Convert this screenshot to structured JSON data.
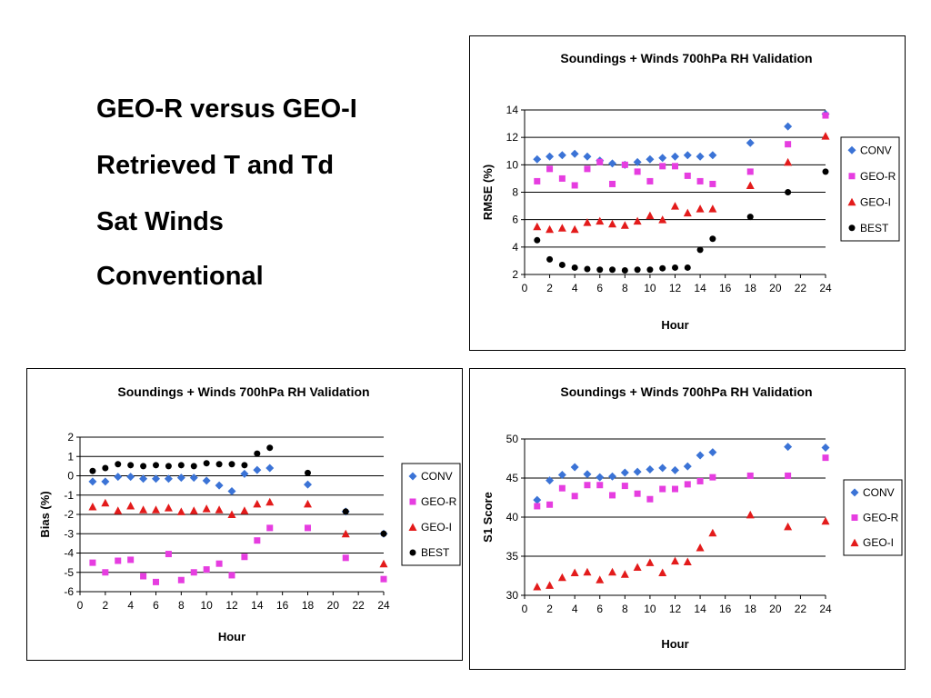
{
  "headings": [
    "GEO-R versus GEO-I",
    "Retrieved T and Td",
    "Sat Winds",
    "Conventional"
  ],
  "colors": {
    "CONV": "#3b73d6",
    "GEO-R": "#e63de0",
    "GEO-I": "#e31b1b",
    "BEST": "#000000"
  },
  "markers": {
    "CONV": "diamond",
    "GEO-R": "square",
    "GEO-I": "triangle",
    "BEST": "circle"
  },
  "chart_data": [
    {
      "id": "rmse",
      "type": "scatter",
      "title": "Soundings + Winds 700hPa RH Validation",
      "xlabel": "Hour",
      "ylabel": "RMSE (%)",
      "xlim": [
        0,
        24
      ],
      "ylim": [
        2,
        14
      ],
      "xticks": [
        0,
        2,
        4,
        6,
        8,
        10,
        12,
        14,
        16,
        18,
        20,
        22,
        24
      ],
      "yticks": [
        2,
        4,
        6,
        8,
        10,
        12,
        14
      ],
      "grid": "horizontal",
      "legend": "right",
      "series": [
        {
          "name": "CONV",
          "points": [
            [
              1,
              10.4
            ],
            [
              2,
              10.6
            ],
            [
              3,
              10.7
            ],
            [
              4,
              10.8
            ],
            [
              5,
              10.6
            ],
            [
              6,
              10.3
            ],
            [
              7,
              10.1
            ],
            [
              8,
              10.0
            ],
            [
              9,
              10.2
            ],
            [
              10,
              10.4
            ],
            [
              11,
              10.5
            ],
            [
              12,
              10.6
            ],
            [
              13,
              10.7
            ],
            [
              14,
              10.6
            ],
            [
              15,
              10.7
            ],
            [
              18,
              11.6
            ],
            [
              21,
              12.8
            ],
            [
              24,
              13.7
            ]
          ]
        },
        {
          "name": "GEO-R",
          "points": [
            [
              1,
              8.8
            ],
            [
              2,
              9.7
            ],
            [
              3,
              9.0
            ],
            [
              4,
              8.5
            ],
            [
              5,
              9.7
            ],
            [
              6,
              10.2
            ],
            [
              7,
              8.6
            ],
            [
              8,
              10.0
            ],
            [
              9,
              9.5
            ],
            [
              10,
              8.8
            ],
            [
              11,
              9.9
            ],
            [
              12,
              9.9
            ],
            [
              13,
              9.2
            ],
            [
              14,
              8.8
            ],
            [
              15,
              8.6
            ],
            [
              18,
              9.5
            ],
            [
              21,
              11.5
            ],
            [
              24,
              13.6
            ]
          ]
        },
        {
          "name": "GEO-I",
          "points": [
            [
              1,
              5.5
            ],
            [
              2,
              5.3
            ],
            [
              3,
              5.4
            ],
            [
              4,
              5.3
            ],
            [
              5,
              5.8
            ],
            [
              6,
              5.9
            ],
            [
              7,
              5.7
            ],
            [
              8,
              5.6
            ],
            [
              9,
              5.9
            ],
            [
              10,
              6.3
            ],
            [
              11,
              6.0
            ],
            [
              12,
              7.0
            ],
            [
              13,
              6.5
            ],
            [
              14,
              6.8
            ],
            [
              15,
              6.8
            ],
            [
              18,
              8.5
            ],
            [
              21,
              10.2
            ],
            [
              24,
              12.1
            ]
          ]
        },
        {
          "name": "BEST",
          "points": [
            [
              1,
              4.5
            ],
            [
              2,
              3.1
            ],
            [
              3,
              2.7
            ],
            [
              4,
              2.5
            ],
            [
              5,
              2.4
            ],
            [
              6,
              2.35
            ],
            [
              7,
              2.35
            ],
            [
              8,
              2.3
            ],
            [
              9,
              2.35
            ],
            [
              10,
              2.35
            ],
            [
              11,
              2.45
            ],
            [
              12,
              2.5
            ],
            [
              13,
              2.5
            ],
            [
              14,
              3.8
            ],
            [
              15,
              4.6
            ],
            [
              18,
              6.2
            ],
            [
              21,
              8.0
            ],
            [
              24,
              9.5
            ]
          ]
        }
      ]
    },
    {
      "id": "bias",
      "type": "scatter",
      "title": "Soundings + Winds 700hPa RH Validation",
      "xlabel": "Hour",
      "ylabel": "Bias (%)",
      "xlim": [
        0,
        24
      ],
      "ylim": [
        -6,
        2
      ],
      "xticks": [
        0,
        2,
        4,
        6,
        8,
        10,
        12,
        14,
        16,
        18,
        20,
        22,
        24
      ],
      "yticks": [
        -6,
        -5,
        -4,
        -3,
        -2,
        -1,
        0,
        1,
        2
      ],
      "grid": "horizontal",
      "legend": "right",
      "series": [
        {
          "name": "CONV",
          "points": [
            [
              1,
              -0.3
            ],
            [
              2,
              -0.3
            ],
            [
              3,
              -0.05
            ],
            [
              4,
              -0.05
            ],
            [
              5,
              -0.15
            ],
            [
              6,
              -0.15
            ],
            [
              7,
              -0.15
            ],
            [
              8,
              -0.1
            ],
            [
              9,
              -0.1
            ],
            [
              10,
              -0.25
            ],
            [
              11,
              -0.5
            ],
            [
              12,
              -0.8
            ],
            [
              13,
              0.1
            ],
            [
              14,
              0.3
            ],
            [
              15,
              0.4
            ],
            [
              18,
              -0.45
            ],
            [
              21,
              -1.85
            ],
            [
              24,
              -3.0
            ]
          ]
        },
        {
          "name": "GEO-R",
          "points": [
            [
              1,
              -4.5
            ],
            [
              2,
              -5.0
            ],
            [
              3,
              -4.4
            ],
            [
              4,
              -4.35
            ],
            [
              5,
              -5.2
            ],
            [
              6,
              -5.5
            ],
            [
              7,
              -4.05
            ],
            [
              8,
              -5.4
            ],
            [
              9,
              -5.0
            ],
            [
              10,
              -4.85
            ],
            [
              11,
              -4.55
            ],
            [
              12,
              -5.15
            ],
            [
              13,
              -4.2
            ],
            [
              14,
              -3.35
            ],
            [
              15,
              -2.7
            ],
            [
              18,
              -2.7
            ],
            [
              21,
              -4.25
            ],
            [
              24,
              -5.35
            ]
          ]
        },
        {
          "name": "GEO-I",
          "points": [
            [
              1,
              -1.6
            ],
            [
              2,
              -1.4
            ],
            [
              3,
              -1.8
            ],
            [
              4,
              -1.55
            ],
            [
              5,
              -1.75
            ],
            [
              6,
              -1.75
            ],
            [
              7,
              -1.65
            ],
            [
              8,
              -1.85
            ],
            [
              9,
              -1.8
            ],
            [
              10,
              -1.7
            ],
            [
              11,
              -1.75
            ],
            [
              12,
              -2.0
            ],
            [
              13,
              -1.8
            ],
            [
              14,
              -1.45
            ],
            [
              15,
              -1.35
            ],
            [
              18,
              -1.45
            ],
            [
              21,
              -3.0
            ],
            [
              24,
              -4.55
            ]
          ]
        },
        {
          "name": "BEST",
          "points": [
            [
              1,
              0.25
            ],
            [
              2,
              0.4
            ],
            [
              3,
              0.6
            ],
            [
              4,
              0.55
            ],
            [
              5,
              0.5
            ],
            [
              6,
              0.55
            ],
            [
              7,
              0.5
            ],
            [
              8,
              0.55
            ],
            [
              9,
              0.5
            ],
            [
              10,
              0.65
            ],
            [
              11,
              0.6
            ],
            [
              12,
              0.6
            ],
            [
              13,
              0.55
            ],
            [
              14,
              1.15
            ],
            [
              15,
              1.45
            ],
            [
              18,
              0.15
            ],
            [
              21,
              -1.85
            ],
            [
              24,
              -3.0
            ]
          ]
        }
      ]
    },
    {
      "id": "s1",
      "type": "scatter",
      "title": "Soundings + Winds 700hPa RH Validation",
      "xlabel": "Hour",
      "ylabel": "S1 Score",
      "xlim": [
        0,
        24
      ],
      "ylim": [
        30,
        50
      ],
      "xticks": [
        0,
        2,
        4,
        6,
        8,
        10,
        12,
        14,
        16,
        18,
        20,
        22,
        24
      ],
      "yticks": [
        30,
        35,
        40,
        45,
        50
      ],
      "grid": "horizontal",
      "legend": "right",
      "series": [
        {
          "name": "CONV",
          "points": [
            [
              1,
              42.2
            ],
            [
              2,
              44.7
            ],
            [
              3,
              45.4
            ],
            [
              4,
              46.4
            ],
            [
              5,
              45.5
            ],
            [
              6,
              45.1
            ],
            [
              7,
              45.2
            ],
            [
              8,
              45.7
            ],
            [
              9,
              45.8
            ],
            [
              10,
              46.1
            ],
            [
              11,
              46.3
            ],
            [
              12,
              46.0
            ],
            [
              13,
              46.5
            ],
            [
              14,
              47.9
            ],
            [
              15,
              48.3
            ],
            [
              18,
              null
            ],
            [
              21,
              49.0
            ],
            [
              24,
              48.9
            ]
          ]
        },
        {
          "name": "GEO-R",
          "points": [
            [
              1,
              41.4
            ],
            [
              2,
              41.6
            ],
            [
              3,
              43.7
            ],
            [
              4,
              42.7
            ],
            [
              5,
              44.1
            ],
            [
              6,
              44.1
            ],
            [
              7,
              42.8
            ],
            [
              8,
              44.0
            ],
            [
              9,
              43.0
            ],
            [
              10,
              42.3
            ],
            [
              11,
              43.6
            ],
            [
              12,
              43.6
            ],
            [
              13,
              44.2
            ],
            [
              14,
              44.6
            ],
            [
              15,
              45.1
            ],
            [
              18,
              45.3
            ],
            [
              21,
              45.3
            ],
            [
              24,
              47.6
            ]
          ]
        },
        {
          "name": "GEO-I",
          "points": [
            [
              1,
              31.1
            ],
            [
              2,
              31.3
            ],
            [
              3,
              32.3
            ],
            [
              4,
              32.9
            ],
            [
              5,
              33.0
            ],
            [
              6,
              32.0
            ],
            [
              7,
              33.0
            ],
            [
              8,
              32.7
            ],
            [
              9,
              33.6
            ],
            [
              10,
              34.2
            ],
            [
              11,
              32.9
            ],
            [
              12,
              34.4
            ],
            [
              13,
              34.3
            ],
            [
              14,
              36.1
            ],
            [
              15,
              38.0
            ],
            [
              18,
              40.3
            ],
            [
              21,
              38.8
            ],
            [
              24,
              39.5
            ]
          ]
        }
      ]
    }
  ]
}
